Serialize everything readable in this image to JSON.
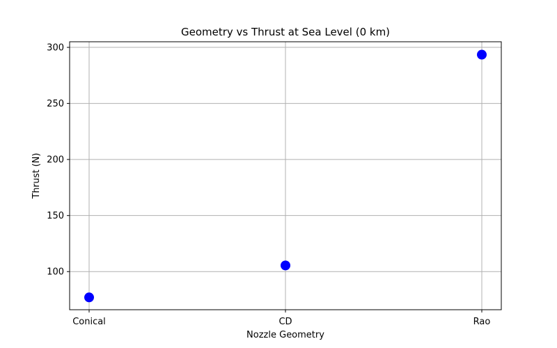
{
  "chart_data": {
    "type": "scatter",
    "title": "Geometry vs Thrust at Sea Level (0 km)",
    "xlabel": "Nozzle Geometry",
    "ylabel": "Thrust (N)",
    "categories": [
      "Conical",
      "CD",
      "Rao"
    ],
    "values": [
      77,
      105.5,
      293.5
    ],
    "ylim": [
      66,
      305
    ],
    "yticks": [
      100,
      150,
      200,
      250,
      300
    ],
    "grid": true,
    "marker_color": "#0000ff"
  }
}
